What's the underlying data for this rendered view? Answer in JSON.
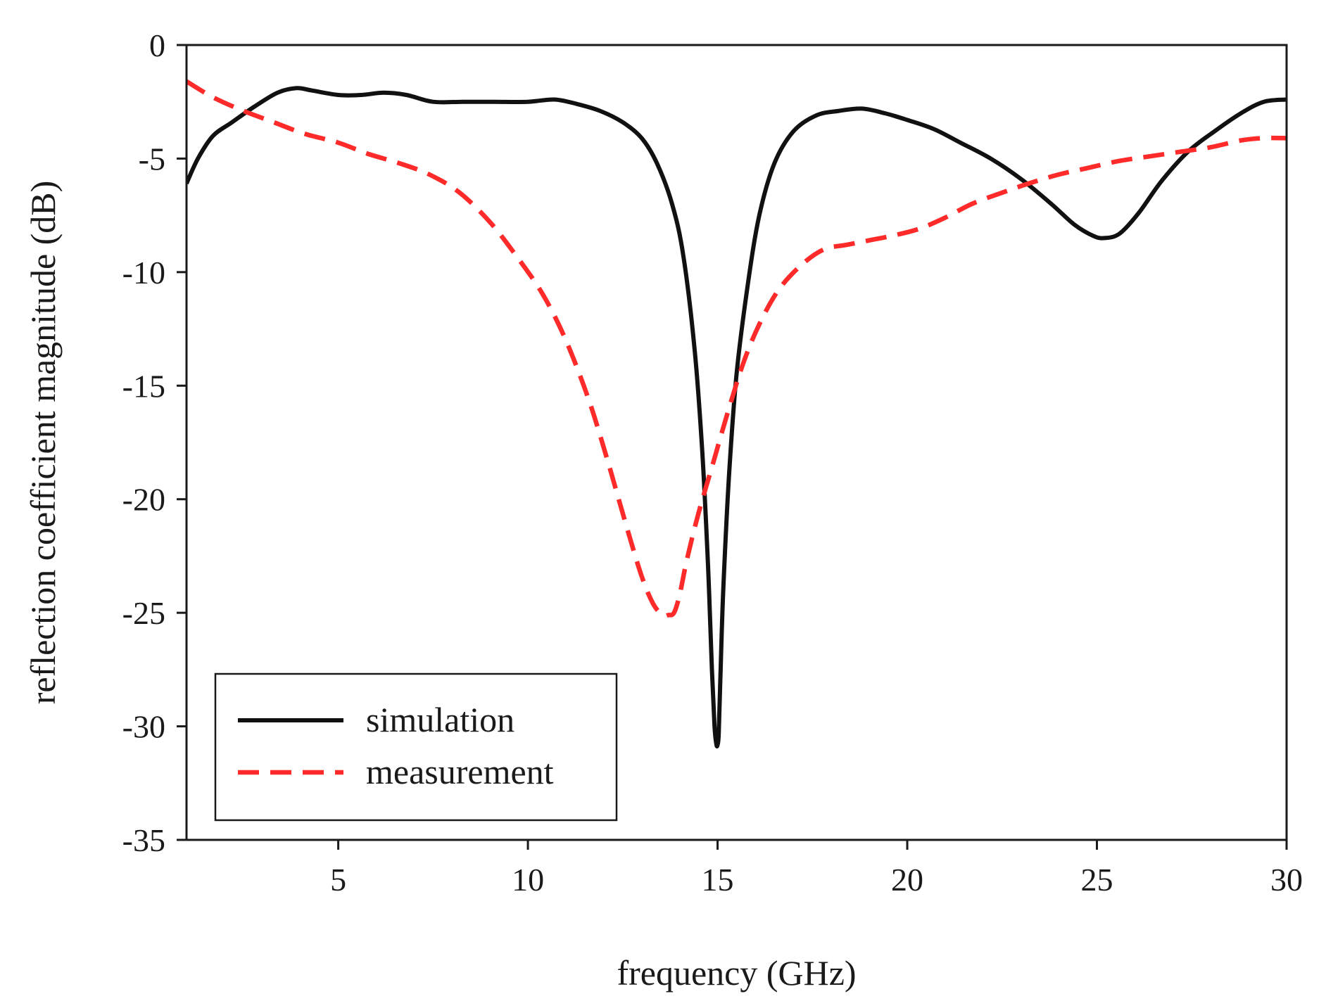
{
  "chart_data": {
    "type": "line",
    "title": "",
    "xlabel": "frequency (GHz)",
    "ylabel": "reflection coefficient magnitude (dB)",
    "xlim": [
      1,
      30
    ],
    "ylim": [
      -35,
      0
    ],
    "x_ticks": [
      5,
      10,
      15,
      20,
      25,
      30
    ],
    "y_ticks": [
      0,
      -5,
      -10,
      -15,
      -20,
      -25,
      -30,
      -35
    ],
    "x_tick_labels": [
      "5",
      "10",
      "15",
      "20",
      "25",
      "30"
    ],
    "y_tick_labels": [
      "0",
      "-5",
      "-10",
      "-15",
      "-20",
      "-25",
      "-30",
      "-35"
    ],
    "grid": false,
    "legend_position": "bottom-left",
    "series": [
      {
        "name": "simulation",
        "color": "#111111",
        "style": "solid",
        "x": [
          1.0,
          1.3,
          1.7,
          2.2,
          2.8,
          3.4,
          3.9,
          4.3,
          5.0,
          5.6,
          6.2,
          6.8,
          7.5,
          8.3,
          9.1,
          10.0,
          10.7,
          11.3,
          11.9,
          12.5,
          13.0,
          13.4,
          13.8,
          14.1,
          14.4,
          14.6,
          14.75,
          14.85,
          14.92,
          14.97,
          15.0,
          15.03,
          15.08,
          15.15,
          15.3,
          15.5,
          15.8,
          16.1,
          16.5,
          17.0,
          17.6,
          18.2,
          18.8,
          19.4,
          20.0,
          20.7,
          21.4,
          22.2,
          23.0,
          23.8,
          24.4,
          24.9,
          25.2,
          25.6,
          26.1,
          26.7,
          27.4,
          28.1,
          28.8,
          29.4,
          30.0
        ],
        "y": [
          -6.1,
          -5.0,
          -4.0,
          -3.4,
          -2.7,
          -2.1,
          -1.9,
          -2.0,
          -2.2,
          -2.2,
          -2.1,
          -2.2,
          -2.5,
          -2.5,
          -2.5,
          -2.5,
          -2.4,
          -2.6,
          -2.9,
          -3.4,
          -4.1,
          -5.2,
          -7.0,
          -9.3,
          -13.5,
          -18.0,
          -23.0,
          -27.5,
          -30.0,
          -30.8,
          -30.8,
          -30.3,
          -27.5,
          -24.0,
          -19.0,
          -14.5,
          -10.5,
          -7.5,
          -5.2,
          -3.8,
          -3.1,
          -2.9,
          -2.8,
          -3.0,
          -3.3,
          -3.7,
          -4.3,
          -5.0,
          -5.9,
          -7.0,
          -7.9,
          -8.4,
          -8.5,
          -8.3,
          -7.4,
          -6.0,
          -4.7,
          -3.8,
          -3.0,
          -2.5,
          -2.4
        ]
      },
      {
        "name": "measurement",
        "color": "#ff2a2a",
        "style": "dashed",
        "x": [
          1.0,
          1.7,
          2.5,
          3.3,
          4.1,
          5.0,
          5.8,
          6.6,
          7.4,
          8.2,
          9.0,
          9.7,
          10.4,
          11.0,
          11.6,
          12.1,
          12.6,
          13.0,
          13.3,
          13.55,
          13.7,
          13.85,
          14.0,
          14.2,
          14.5,
          14.9,
          15.3,
          15.7,
          16.1,
          16.6,
          17.2,
          17.8,
          18.4,
          19.0,
          19.6,
          20.3,
          21.0,
          21.7,
          22.5,
          23.2,
          24.0,
          24.8,
          25.6,
          26.4,
          27.2,
          28.0,
          28.8,
          29.4,
          30.0
        ],
        "y": [
          -1.6,
          -2.3,
          -2.9,
          -3.4,
          -3.9,
          -4.3,
          -4.8,
          -5.2,
          -5.7,
          -6.5,
          -7.8,
          -9.3,
          -11.0,
          -13.0,
          -15.6,
          -18.3,
          -21.2,
          -23.4,
          -24.6,
          -25.1,
          -25.1,
          -25.0,
          -24.2,
          -22.6,
          -20.6,
          -18.3,
          -16.0,
          -13.9,
          -12.3,
          -10.8,
          -9.7,
          -9.0,
          -8.8,
          -8.6,
          -8.4,
          -8.1,
          -7.6,
          -7.0,
          -6.5,
          -6.1,
          -5.7,
          -5.4,
          -5.1,
          -4.9,
          -4.7,
          -4.5,
          -4.2,
          -4.1,
          -4.1
        ]
      }
    ]
  }
}
